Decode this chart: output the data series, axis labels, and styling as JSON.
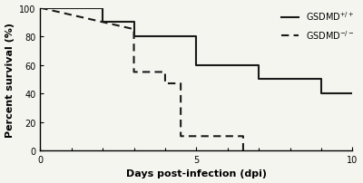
{
  "title": "",
  "xlabel": "Days post-infection (dpi)",
  "ylabel": "Percent survival (%)",
  "xlim": [
    0,
    10
  ],
  "ylim": [
    0,
    100
  ],
  "xticks": [
    0,
    5,
    10
  ],
  "yticks": [
    0,
    20,
    40,
    60,
    80,
    100
  ],
  "wt_x": [
    0,
    2,
    2,
    3,
    3,
    5,
    5,
    7,
    7,
    9,
    9,
    10
  ],
  "wt_y": [
    100,
    100,
    90,
    90,
    80,
    80,
    60,
    60,
    50,
    50,
    40,
    40
  ],
  "ko_x": [
    0,
    3,
    3,
    4,
    4,
    4.5,
    4.5,
    6.5,
    6.5
  ],
  "ko_y": [
    100,
    85,
    55,
    55,
    47,
    47,
    10,
    10,
    0
  ],
  "wt_label": "GSDMD$^{+/+}$",
  "ko_label": "GSDMD$^{-/-}$",
  "line_color": "#1a1a1a",
  "bg_color": "#f5f5f0",
  "fontsize_axis_label": 8,
  "fontsize_tick": 7,
  "linewidth": 1.5
}
